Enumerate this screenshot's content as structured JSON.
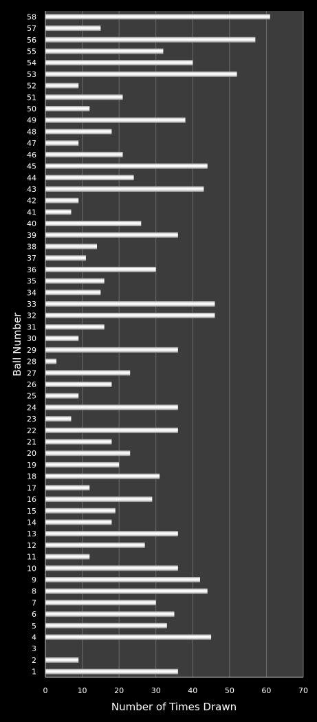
{
  "chart_data": {
    "type": "bar",
    "orientation": "horizontal",
    "xlabel": "Number of Times Drawn",
    "ylabel": "Ball Number",
    "xlim": [
      0,
      70
    ],
    "xticks": [
      0,
      10,
      20,
      30,
      40,
      50,
      60,
      70
    ],
    "grid": "vertical",
    "categories": [
      "1",
      "2",
      "3",
      "4",
      "5",
      "6",
      "7",
      "8",
      "9",
      "10",
      "11",
      "12",
      "13",
      "14",
      "15",
      "16",
      "17",
      "18",
      "19",
      "20",
      "21",
      "22",
      "23",
      "24",
      "25",
      "26",
      "27",
      "28",
      "29",
      "30",
      "31",
      "32",
      "33",
      "34",
      "35",
      "36",
      "37",
      "38",
      "39",
      "40",
      "41",
      "42",
      "43",
      "44",
      "45",
      "46",
      "47",
      "48",
      "49",
      "50",
      "51",
      "52",
      "53",
      "54",
      "55",
      "56",
      "57",
      "58"
    ],
    "values": [
      36,
      9,
      0,
      45,
      33,
      35,
      30,
      44,
      42,
      36,
      12,
      27,
      36,
      18,
      19,
      29,
      12,
      31,
      20,
      23,
      18,
      36,
      7,
      36,
      9,
      18,
      23,
      3,
      36,
      9,
      16,
      46,
      46,
      15,
      16,
      30,
      11,
      14,
      36,
      26,
      7,
      9,
      43,
      24,
      44,
      21,
      9,
      18,
      38,
      12,
      21,
      9,
      52,
      40,
      32,
      57,
      15,
      61
    ],
    "colors": {
      "background": "#000000",
      "plot_area": "#3c3c3c",
      "grid": "#6e6e6e",
      "bar_light": "#ffffff",
      "bar_dark": "#9a9a9a",
      "text": "#ffffff"
    }
  }
}
